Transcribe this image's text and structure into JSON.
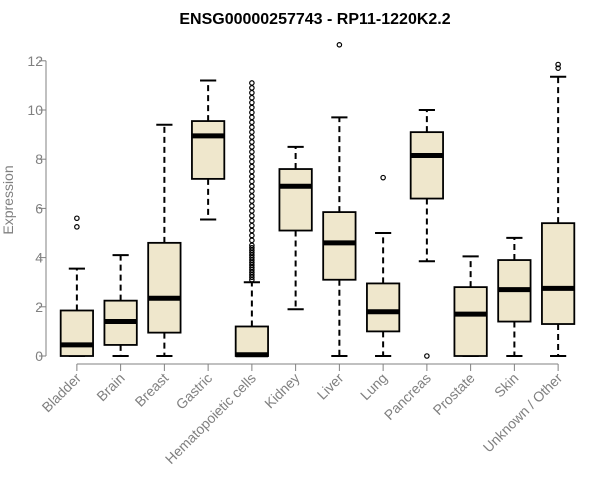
{
  "chart_data": {
    "type": "boxplot",
    "title": "ENSG00000257743 - RP11-1220K2.2",
    "xlabel": "",
    "ylabel": "Expression",
    "ylim": [
      0,
      12.5
    ],
    "yticks": [
      0,
      2,
      4,
      6,
      8,
      10,
      12
    ],
    "box_color": "#EFE7CC",
    "axis_color": "#808080",
    "categories": [
      "Bladder",
      "Brain",
      "Breast",
      "Gastric",
      "Hematopoietic cells",
      "Kidney",
      "Liver",
      "Lung",
      "Pancreas",
      "Prostate",
      "Skin",
      "Unknown / Other"
    ],
    "boxes": [
      {
        "name": "Bladder",
        "whisker_low": 0,
        "q1": 0,
        "median": 0.45,
        "q3": 1.85,
        "whisker_high": 3.55,
        "outliers": [
          5.25,
          5.6
        ]
      },
      {
        "name": "Brain",
        "whisker_low": 0,
        "q1": 0.45,
        "median": 1.4,
        "q3": 2.25,
        "whisker_high": 4.1,
        "outliers": []
      },
      {
        "name": "Breast",
        "whisker_low": 0,
        "q1": 0.95,
        "median": 2.35,
        "q3": 4.6,
        "whisker_high": 9.4,
        "outliers": []
      },
      {
        "name": "Gastric",
        "whisker_low": 5.55,
        "q1": 7.2,
        "median": 8.95,
        "q3": 9.55,
        "whisker_high": 11.2,
        "outliers": []
      },
      {
        "name": "Hematopoietic cells",
        "whisker_low": 0,
        "q1": 0,
        "median": 0.05,
        "q3": 1.2,
        "whisker_high": 3.0,
        "outliers": [
          3.1,
          3.2,
          3.3,
          3.4,
          3.5,
          3.6,
          3.7,
          3.8,
          3.9,
          4.0,
          4.1,
          4.2,
          4.3,
          4.4,
          4.5,
          4.7,
          4.9,
          5.1,
          5.3,
          5.5,
          5.7,
          5.9,
          6.1,
          6.3,
          6.5,
          6.7,
          6.9,
          7.1,
          7.3,
          7.5,
          7.7,
          7.9,
          8.1,
          8.3,
          8.5,
          8.7,
          8.9,
          9.1,
          9.3,
          9.5,
          9.7,
          9.9,
          10.1,
          10.3,
          10.5,
          10.7,
          10.9,
          11.1
        ]
      },
      {
        "name": "Kidney",
        "whisker_low": 1.9,
        "q1": 5.1,
        "median": 6.9,
        "q3": 7.6,
        "whisker_high": 8.5,
        "outliers": []
      },
      {
        "name": "Liver",
        "whisker_low": 0,
        "q1": 3.1,
        "median": 4.6,
        "q3": 5.85,
        "whisker_high": 9.7,
        "outliers": [
          12.65
        ]
      },
      {
        "name": "Lung",
        "whisker_low": 0,
        "q1": 1.0,
        "median": 1.8,
        "q3": 2.95,
        "whisker_high": 5.0,
        "outliers": [
          7.25
        ]
      },
      {
        "name": "Pancreas",
        "whisker_low": 3.85,
        "q1": 6.4,
        "median": 8.15,
        "q3": 9.1,
        "whisker_high": 10.0,
        "outliers": [
          0
        ]
      },
      {
        "name": "Prostate",
        "whisker_low": 0,
        "q1": 0,
        "median": 1.7,
        "q3": 2.8,
        "whisker_high": 4.05,
        "outliers": []
      },
      {
        "name": "Skin",
        "whisker_low": 0,
        "q1": 1.4,
        "median": 2.7,
        "q3": 3.9,
        "whisker_high": 4.8,
        "outliers": []
      },
      {
        "name": "Unknown / Other",
        "whisker_low": 0,
        "q1": 1.3,
        "median": 2.75,
        "q3": 5.4,
        "whisker_high": 11.35,
        "outliers": [
          11.7,
          11.85
        ]
      }
    ]
  }
}
